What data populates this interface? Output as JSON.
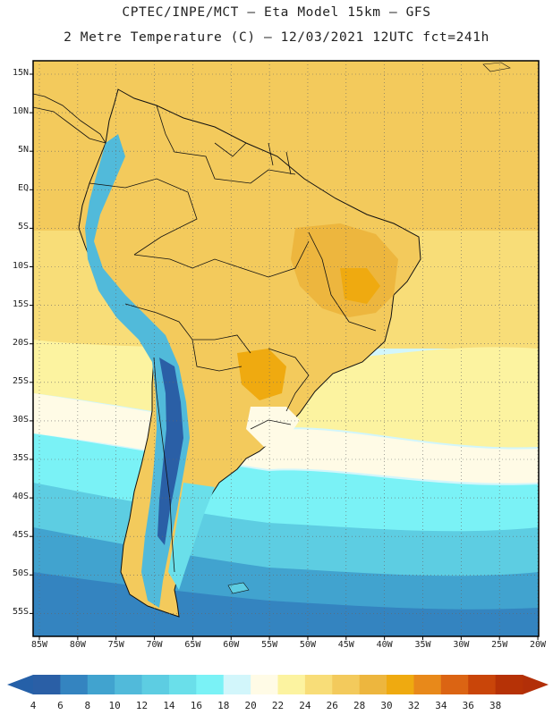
{
  "header": {
    "line1": "CPTEC/INPE/MCT —  Eta Model 15km — GFS",
    "line2": "2 Metre Temperature (C) — 12/03/2021 12UTC fct=241h"
  },
  "map": {
    "lat_labels": [
      "15N",
      "10N",
      "5N",
      "EQ",
      "5S",
      "10S",
      "15S",
      "20S",
      "25S",
      "30S",
      "35S",
      "40S",
      "45S",
      "50S",
      "55S"
    ],
    "lon_labels": [
      "85W",
      "80W",
      "75W",
      "70W",
      "65W",
      "60W",
      "55W",
      "50W",
      "45W",
      "40W",
      "35W",
      "30W",
      "25W",
      "20W"
    ]
  },
  "colorbar": {
    "labels": [
      "4",
      "6",
      "8",
      "10",
      "12",
      "14",
      "16",
      "18",
      "20",
      "22",
      "24",
      "26",
      "28",
      "30",
      "32",
      "34",
      "36",
      "38"
    ],
    "colors": [
      "#2a5fa6",
      "#3484c0",
      "#41a3cf",
      "#51bada",
      "#5dcde2",
      "#6adfea",
      "#7af2f6",
      "#d2f6fb",
      "#fffbe6",
      "#fcf3a0",
      "#f8dd78",
      "#f3ca5c",
      "#edb63e",
      "#efaa10",
      "#e8891a",
      "#db6413",
      "#c94509",
      "#b63206"
    ],
    "left_arrow_color": "#2560a8",
    "right_arrow_color": "#b22f08"
  }
}
